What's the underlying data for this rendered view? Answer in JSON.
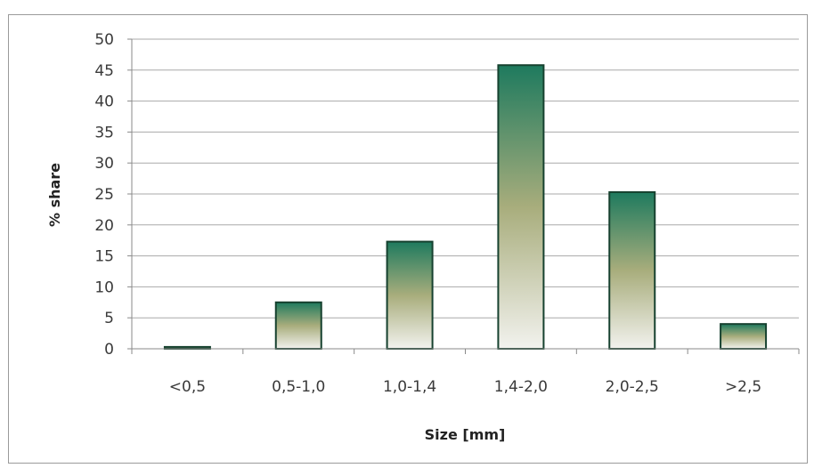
{
  "chart_data": {
    "type": "bar",
    "categories": [
      "<0,5",
      "0,5-1,0",
      "1,0-1,4",
      "1,4-2,0",
      "2,0-2,5",
      ">2,5"
    ],
    "values": [
      0.3,
      7.5,
      17.3,
      45.8,
      25.3,
      4.0
    ],
    "title": "",
    "xlabel": "Size [mm]",
    "ylabel": "% share",
    "ylim": [
      0,
      50
    ],
    "yticks": [
      0,
      5,
      10,
      15,
      20,
      25,
      30,
      35,
      40,
      45,
      50
    ],
    "grid": true,
    "colors": {
      "bar_top": "#1e7a5e",
      "bar_mid": "#a8ad7c",
      "bar_bottom": "#f2f2ee",
      "bar_border": "#16412f",
      "grid": "#a9a9a9",
      "axis": "#8a8a8a"
    }
  }
}
